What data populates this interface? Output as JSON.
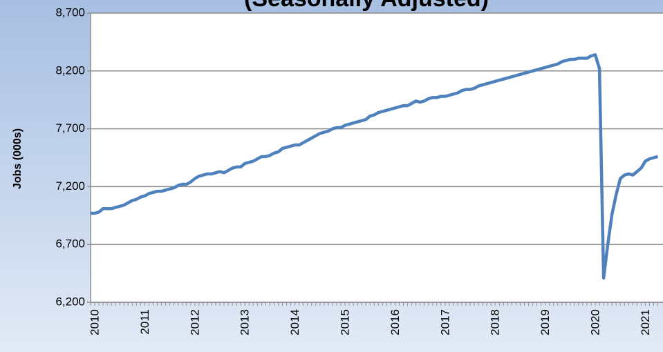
{
  "chart_data": {
    "type": "line",
    "title": "(Seasonally Adjusted)",
    "y_label": "Jobs (000s)",
    "categories": [
      "2010",
      null,
      null,
      null,
      null,
      null,
      null,
      null,
      null,
      null,
      null,
      null,
      "2011",
      null,
      null,
      null,
      null,
      null,
      null,
      null,
      null,
      null,
      null,
      null,
      "2012",
      null,
      null,
      null,
      null,
      null,
      null,
      null,
      null,
      null,
      null,
      null,
      "2013",
      null,
      null,
      null,
      null,
      null,
      null,
      null,
      null,
      null,
      null,
      null,
      "2014",
      null,
      null,
      null,
      null,
      null,
      null,
      null,
      null,
      null,
      null,
      null,
      "2015",
      null,
      null,
      null,
      null,
      null,
      null,
      null,
      null,
      null,
      null,
      null,
      "2016",
      null,
      null,
      null,
      null,
      null,
      null,
      null,
      null,
      null,
      null,
      null,
      "2017",
      null,
      null,
      null,
      null,
      null,
      null,
      null,
      null,
      null,
      null,
      null,
      "2018",
      null,
      null,
      null,
      null,
      null,
      null,
      null,
      null,
      null,
      null,
      null,
      "2019",
      null,
      null,
      null,
      null,
      null,
      null,
      null,
      null,
      null,
      null,
      null,
      "2020",
      null,
      null,
      null,
      null,
      null,
      null,
      null,
      null,
      null,
      null,
      null,
      "2021",
      null,
      null,
      null,
      null
    ],
    "series": [
      {
        "color": "#4f81bd",
        "values": [
          6970,
          6970,
          6980,
          7010,
          7010,
          7010,
          7020,
          7030,
          7040,
          7060,
          7080,
          7090,
          7110,
          7120,
          7140,
          7150,
          7160,
          7160,
          7170,
          7180,
          7190,
          7210,
          7220,
          7220,
          7240,
          7270,
          7290,
          7300,
          7310,
          7310,
          7320,
          7330,
          7320,
          7340,
          7360,
          7370,
          7370,
          7400,
          7410,
          7420,
          7440,
          7460,
          7460,
          7470,
          7490,
          7500,
          7530,
          7540,
          7550,
          7560,
          7560,
          7580,
          7600,
          7620,
          7640,
          7660,
          7670,
          7680,
          7700,
          7710,
          7710,
          7730,
          7740,
          7750,
          7760,
          7770,
          7780,
          7810,
          7820,
          7840,
          7850,
          7860,
          7870,
          7880,
          7890,
          7900,
          7900,
          7920,
          7940,
          7930,
          7940,
          7960,
          7970,
          7970,
          7980,
          7980,
          7990,
          8000,
          8010,
          8030,
          8040,
          8040,
          8050,
          8070,
          8080,
          8090,
          8100,
          8110,
          8120,
          8130,
          8140,
          8150,
          8160,
          8170,
          8180,
          8190,
          8200,
          8210,
          8220,
          8230,
          8240,
          8250,
          8260,
          8280,
          8290,
          8300,
          8300,
          8310,
          8310,
          8310,
          8330,
          8340,
          8220,
          6410,
          6700,
          6960,
          7130,
          7270,
          7300,
          7310,
          7300,
          7330,
          7360,
          7420,
          7440,
          7450,
          7460
        ]
      }
    ],
    "ylim": [
      6200,
      8700
    ],
    "yticks": [
      {
        "value": 6200,
        "label": "6,200"
      },
      {
        "value": 6700,
        "label": "6,700"
      },
      {
        "value": 7200,
        "label": "7,200"
      },
      {
        "value": 7700,
        "label": "7,700"
      },
      {
        "value": 8200,
        "label": "8,200"
      },
      {
        "value": 8700,
        "label": "8,700"
      }
    ],
    "grid": true
  }
}
